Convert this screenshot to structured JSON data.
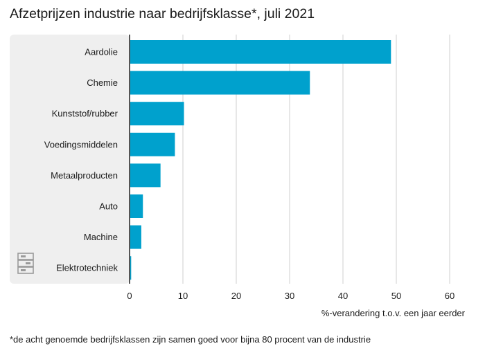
{
  "title": "Afzetprijzen industrie naar bedrijfsklasse*, juli 2021",
  "footnote": "*de acht genoemde bedrijfsklassen zijn samen goed voor bijna 80 procent van de industrie",
  "logo": {
    "icon": "cbs-logo-icon",
    "text": "cbs"
  },
  "colors": {
    "bar": "#00a1cd",
    "panel": "#efefef",
    "grid": "#cfcfcf",
    "axis": "#555555"
  },
  "chart_data": {
    "type": "bar",
    "orientation": "horizontal",
    "categories": [
      "Aardolie",
      "Chemie",
      "Kunststof/rubber",
      "Voedingsmiddelen",
      "Metaalproducten",
      "Auto",
      "Machine",
      "Elektrotechniek"
    ],
    "values": [
      49,
      33.8,
      10.2,
      8.5,
      5.8,
      2.5,
      2.2,
      0.3
    ],
    "xlabel": "%-verandering t.o.v. een jaar eerder",
    "xlim": [
      0,
      60
    ],
    "xticks": [
      0,
      10,
      20,
      30,
      40,
      50,
      60
    ],
    "grid": true
  }
}
